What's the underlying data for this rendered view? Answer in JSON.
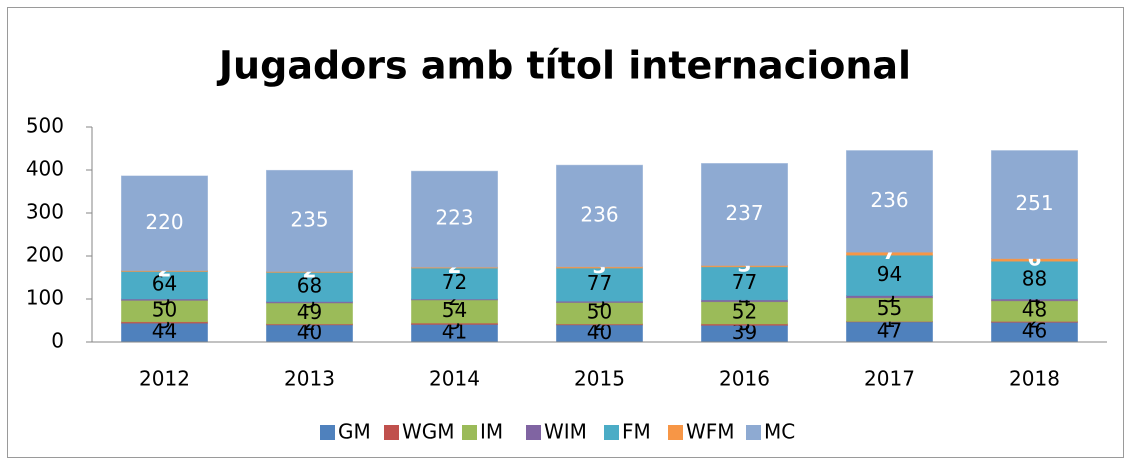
{
  "chart_data": {
    "type": "stacked_bar",
    "title": "Jugadors amb títol internacional",
    "categories": [
      "2012",
      "2013",
      "2014",
      "2015",
      "2016",
      "2017",
      "2018"
    ],
    "series": [
      {
        "name": "GM",
        "color": "#4f81bd",
        "label_color": "#000000",
        "values": [
          44,
          40,
          41,
          40,
          39,
          47,
          46
        ]
      },
      {
        "name": "WGM",
        "color": "#c0504d",
        "label_color": "#000000",
        "values": [
          3,
          2,
          3,
          2,
          3,
          1,
          2
        ]
      },
      {
        "name": "IM",
        "color": "#9bbb59",
        "label_color": "#000000",
        "values": [
          50,
          49,
          54,
          50,
          52,
          55,
          48
        ]
      },
      {
        "name": "WIM",
        "color": "#8064a2",
        "label_color": "#000000",
        "values": [
          3,
          3,
          2,
          3,
          4,
          5,
          4
        ]
      },
      {
        "name": "FM",
        "color": "#4bacc6",
        "label_color": "#000000",
        "values": [
          64,
          68,
          72,
          77,
          77,
          94,
          88
        ]
      },
      {
        "name": "WFM",
        "color": "#f79646",
        "label_color": "#ffffff",
        "values": [
          2,
          2,
          2,
          3,
          3,
          7,
          6
        ]
      },
      {
        "name": "MC",
        "color": "#8eaad2",
        "label_color": "#ffffff",
        "values": [
          220,
          235,
          223,
          236,
          237,
          236,
          251
        ]
      }
    ],
    "ylim": [
      0,
      500
    ],
    "yticks": [
      0,
      100,
      200,
      300,
      400,
      500
    ],
    "grid": false,
    "legend": "bottom"
  }
}
